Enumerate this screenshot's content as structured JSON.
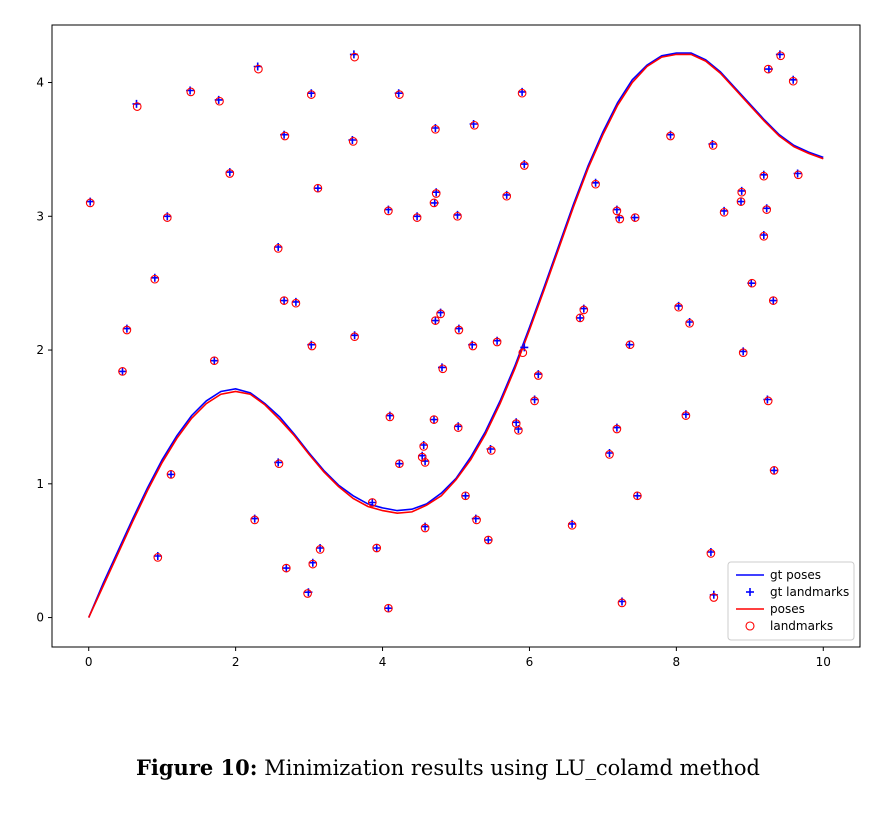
{
  "caption": {
    "label": "Figure 10:",
    "text": " Minimization results using LU_colamd method"
  },
  "colors": {
    "gt": "#0000ff",
    "est": "#ff0000"
  },
  "chart_data": {
    "type": "scatter",
    "title": "",
    "xlabel": "",
    "ylabel": "",
    "xlim": [
      -0.5,
      10.5
    ],
    "ylim": [
      -0.22,
      4.43
    ],
    "xticks": [
      0,
      2,
      4,
      6,
      8,
      10
    ],
    "yticks": [
      0,
      1,
      2,
      3,
      4
    ],
    "grid": false,
    "legend_position": "lower right",
    "legend": [
      "gt poses",
      "gt landmarks",
      "poses",
      "landmarks"
    ],
    "curve_x": [
      0.0,
      0.2,
      0.4,
      0.6,
      0.8,
      1.0,
      1.2,
      1.4,
      1.6,
      1.8,
      2.0,
      2.2,
      2.4,
      2.6,
      2.8,
      3.0,
      3.2,
      3.4,
      3.6,
      3.8,
      4.0,
      4.2,
      4.4,
      4.6,
      4.8,
      5.0,
      5.2,
      5.4,
      5.6,
      5.8,
      6.0,
      6.2,
      6.4,
      6.6,
      6.8,
      7.0,
      7.2,
      7.4,
      7.6,
      7.8,
      8.0,
      8.2,
      8.4,
      8.6,
      8.8,
      9.0,
      9.2,
      9.4,
      9.6,
      9.8,
      10.0
    ],
    "gt_poses_y": [
      0.0,
      0.26,
      0.5,
      0.74,
      0.97,
      1.18,
      1.36,
      1.51,
      1.62,
      1.69,
      1.71,
      1.68,
      1.6,
      1.5,
      1.37,
      1.23,
      1.1,
      0.99,
      0.91,
      0.85,
      0.82,
      0.8,
      0.81,
      0.85,
      0.93,
      1.04,
      1.2,
      1.39,
      1.62,
      1.88,
      2.17,
      2.47,
      2.78,
      3.09,
      3.38,
      3.63,
      3.85,
      4.02,
      4.13,
      4.2,
      4.22,
      4.22,
      4.17,
      4.08,
      3.96,
      3.84,
      3.72,
      3.61,
      3.53,
      3.48,
      3.44
    ],
    "poses_y": [
      0.0,
      0.24,
      0.48,
      0.72,
      0.95,
      1.16,
      1.34,
      1.49,
      1.6,
      1.67,
      1.69,
      1.67,
      1.59,
      1.48,
      1.36,
      1.22,
      1.09,
      0.98,
      0.89,
      0.83,
      0.8,
      0.78,
      0.79,
      0.84,
      0.91,
      1.03,
      1.18,
      1.37,
      1.6,
      1.86,
      2.15,
      2.45,
      2.76,
      3.07,
      3.36,
      3.61,
      3.83,
      4.0,
      4.12,
      4.19,
      4.21,
      4.21,
      4.16,
      4.07,
      3.95,
      3.83,
      3.71,
      3.6,
      3.52,
      3.47,
      3.43
    ],
    "gt_landmarks": [
      [
        0.02,
        3.11
      ],
      [
        0.46,
        1.84
      ],
      [
        0.52,
        2.16
      ],
      [
        0.65,
        3.84
      ],
      [
        0.9,
        2.54
      ],
      [
        0.94,
        0.46
      ],
      [
        1.07,
        3.0
      ],
      [
        1.12,
        1.07
      ],
      [
        1.38,
        3.94
      ],
      [
        1.71,
        1.92
      ],
      [
        1.77,
        3.87
      ],
      [
        1.92,
        3.33
      ],
      [
        2.26,
        0.74
      ],
      [
        2.3,
        4.12
      ],
      [
        2.58,
        2.77
      ],
      [
        2.58,
        1.16
      ],
      [
        2.66,
        2.37
      ],
      [
        2.66,
        3.61
      ],
      [
        2.69,
        0.37
      ],
      [
        2.82,
        2.36
      ],
      [
        2.99,
        0.19
      ],
      [
        3.03,
        3.92
      ],
      [
        3.03,
        2.04
      ],
      [
        3.05,
        0.41
      ],
      [
        3.12,
        3.21
      ],
      [
        3.15,
        0.52
      ],
      [
        3.59,
        3.57
      ],
      [
        3.61,
        4.21
      ],
      [
        3.62,
        2.11
      ],
      [
        3.86,
        0.86
      ],
      [
        3.92,
        0.52
      ],
      [
        4.08,
        3.05
      ],
      [
        4.08,
        0.07
      ],
      [
        4.1,
        1.51
      ],
      [
        4.22,
        3.92
      ],
      [
        4.23,
        1.15
      ],
      [
        4.47,
        3.0
      ],
      [
        4.54,
        1.21
      ],
      [
        4.56,
        1.29
      ],
      [
        4.58,
        1.17
      ],
      [
        4.58,
        0.68
      ],
      [
        4.7,
        1.48
      ],
      [
        4.71,
        3.1
      ],
      [
        4.72,
        3.66
      ],
      [
        4.72,
        2.22
      ],
      [
        4.73,
        3.18
      ],
      [
        4.79,
        2.28
      ],
      [
        4.81,
        1.87
      ],
      [
        5.02,
        3.01
      ],
      [
        5.03,
        1.43
      ],
      [
        5.04,
        2.16
      ],
      [
        5.13,
        0.91
      ],
      [
        5.22,
        2.04
      ],
      [
        5.24,
        3.69
      ],
      [
        5.27,
        0.74
      ],
      [
        5.44,
        0.58
      ],
      [
        5.47,
        1.26
      ],
      [
        5.56,
        2.07
      ],
      [
        5.69,
        3.16
      ],
      [
        5.82,
        1.46
      ],
      [
        5.85,
        1.41
      ],
      [
        5.9,
        3.93
      ],
      [
        5.93,
        3.39
      ],
      [
        5.93,
        2.02
      ],
      [
        6.07,
        1.63
      ],
      [
        6.12,
        1.82
      ],
      [
        6.58,
        0.7
      ],
      [
        6.69,
        2.24
      ],
      [
        6.74,
        2.31
      ],
      [
        6.9,
        3.25
      ],
      [
        7.09,
        1.23
      ],
      [
        7.19,
        1.42
      ],
      [
        7.19,
        3.05
      ],
      [
        7.22,
        2.99
      ],
      [
        7.26,
        0.12
      ],
      [
        7.36,
        2.04
      ],
      [
        7.43,
        2.99
      ],
      [
        7.47,
        0.91
      ],
      [
        7.92,
        3.61
      ],
      [
        8.03,
        2.33
      ],
      [
        8.13,
        1.52
      ],
      [
        8.18,
        2.21
      ],
      [
        8.47,
        0.49
      ],
      [
        8.49,
        3.54
      ],
      [
        8.51,
        0.17
      ],
      [
        8.65,
        3.04
      ],
      [
        8.88,
        3.11
      ],
      [
        8.89,
        3.19
      ],
      [
        8.91,
        1.99
      ],
      [
        9.02,
        2.5
      ],
      [
        9.19,
        3.31
      ],
      [
        9.19,
        2.86
      ],
      [
        9.23,
        3.06
      ],
      [
        9.24,
        1.63
      ],
      [
        9.26,
        4.1
      ],
      [
        9.32,
        2.37
      ],
      [
        9.33,
        1.1
      ],
      [
        9.41,
        4.21
      ],
      [
        9.59,
        4.02
      ],
      [
        9.65,
        3.32
      ]
    ],
    "landmarks": [
      [
        0.02,
        3.1
      ],
      [
        0.46,
        1.84
      ],
      [
        0.52,
        2.15
      ],
      [
        0.66,
        3.82
      ],
      [
        0.9,
        2.53
      ],
      [
        0.94,
        0.45
      ],
      [
        1.07,
        2.99
      ],
      [
        1.12,
        1.07
      ],
      [
        1.39,
        3.93
      ],
      [
        1.71,
        1.92
      ],
      [
        1.78,
        3.86
      ],
      [
        1.92,
        3.32
      ],
      [
        2.26,
        0.73
      ],
      [
        2.31,
        4.1
      ],
      [
        2.58,
        2.76
      ],
      [
        2.59,
        1.15
      ],
      [
        2.66,
        2.37
      ],
      [
        2.67,
        3.6
      ],
      [
        2.69,
        0.37
      ],
      [
        2.82,
        2.35
      ],
      [
        2.98,
        0.18
      ],
      [
        3.03,
        3.91
      ],
      [
        3.04,
        2.03
      ],
      [
        3.05,
        0.4
      ],
      [
        3.12,
        3.21
      ],
      [
        3.15,
        0.51
      ],
      [
        3.6,
        3.56
      ],
      [
        3.62,
        4.19
      ],
      [
        3.62,
        2.1
      ],
      [
        3.86,
        0.86
      ],
      [
        3.92,
        0.52
      ],
      [
        4.08,
        3.04
      ],
      [
        4.08,
        0.07
      ],
      [
        4.1,
        1.5
      ],
      [
        4.23,
        3.91
      ],
      [
        4.23,
        1.15
      ],
      [
        4.47,
        2.99
      ],
      [
        4.54,
        1.2
      ],
      [
        4.56,
        1.28
      ],
      [
        4.58,
        1.16
      ],
      [
        4.58,
        0.67
      ],
      [
        4.7,
        1.48
      ],
      [
        4.7,
        3.1
      ],
      [
        4.72,
        3.65
      ],
      [
        4.72,
        2.22
      ],
      [
        4.73,
        3.17
      ],
      [
        4.79,
        2.27
      ],
      [
        4.82,
        1.86
      ],
      [
        5.02,
        3.0
      ],
      [
        5.03,
        1.42
      ],
      [
        5.04,
        2.15
      ],
      [
        5.13,
        0.91
      ],
      [
        5.23,
        2.03
      ],
      [
        5.25,
        3.68
      ],
      [
        5.28,
        0.73
      ],
      [
        5.44,
        0.58
      ],
      [
        5.48,
        1.25
      ],
      [
        5.56,
        2.06
      ],
      [
        5.69,
        3.15
      ],
      [
        5.82,
        1.45
      ],
      [
        5.85,
        1.4
      ],
      [
        5.9,
        3.92
      ],
      [
        5.93,
        3.38
      ],
      [
        5.91,
        1.98
      ],
      [
        6.07,
        1.62
      ],
      [
        6.12,
        1.81
      ],
      [
        6.58,
        0.69
      ],
      [
        6.69,
        2.24
      ],
      [
        6.74,
        2.3
      ],
      [
        6.9,
        3.24
      ],
      [
        7.09,
        1.22
      ],
      [
        7.19,
        1.41
      ],
      [
        7.19,
        3.04
      ],
      [
        7.23,
        2.98
      ],
      [
        7.26,
        0.11
      ],
      [
        7.37,
        2.04
      ],
      [
        7.44,
        2.99
      ],
      [
        7.47,
        0.91
      ],
      [
        7.92,
        3.6
      ],
      [
        8.03,
        2.32
      ],
      [
        8.13,
        1.51
      ],
      [
        8.18,
        2.2
      ],
      [
        8.47,
        0.48
      ],
      [
        8.5,
        3.53
      ],
      [
        8.51,
        0.15
      ],
      [
        8.65,
        3.03
      ],
      [
        8.88,
        3.11
      ],
      [
        8.89,
        3.18
      ],
      [
        8.91,
        1.98
      ],
      [
        9.03,
        2.5
      ],
      [
        9.19,
        3.3
      ],
      [
        9.19,
        2.85
      ],
      [
        9.23,
        3.05
      ],
      [
        9.25,
        1.62
      ],
      [
        9.25,
        4.1
      ],
      [
        9.32,
        2.37
      ],
      [
        9.33,
        1.1
      ],
      [
        9.42,
        4.2
      ],
      [
        9.59,
        4.01
      ],
      [
        9.66,
        3.31
      ]
    ]
  }
}
